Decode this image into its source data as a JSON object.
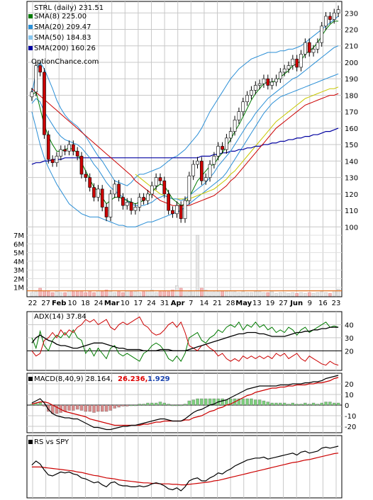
{
  "chart_data": {
    "type": "candlestick",
    "symbol": "STRL",
    "period": "daily",
    "last": "231.51",
    "brand": "OptionChance.com",
    "x_labels": [
      "22",
      "27",
      "Feb",
      "10",
      "18",
      "24",
      "Mar",
      "10",
      "17",
      "24",
      "31",
      "Apr",
      "7",
      "14",
      "21",
      "28",
      "May",
      "13",
      "19",
      "27",
      "Jun",
      "9",
      "16",
      "23"
    ],
    "price_ticks": [
      "230",
      "220",
      "210",
      "200",
      "190",
      "180",
      "170",
      "160",
      "150",
      "140",
      "130",
      "120",
      "110",
      "100"
    ],
    "price_range": [
      95,
      237
    ],
    "volume_ticks": [
      "7M",
      "6M",
      "5M",
      "4M",
      "3M",
      "2M",
      "1M"
    ],
    "volume_range": [
      0,
      7.5
    ],
    "indicators": [
      {
        "name": "SMA(8)",
        "value": "225.00",
        "color": "#007a00"
      },
      {
        "name": "SMA(20)",
        "value": "209.47",
        "color": "#2b8fd6"
      },
      {
        "name": "SMA(50)",
        "value": "184.83",
        "color": "#87c6f0"
      },
      {
        "name": "SMA(200)",
        "value": "160.26",
        "color": "#0000a0"
      }
    ],
    "closes": [
      182,
      198,
      194,
      156,
      141,
      139,
      143,
      147,
      146,
      150,
      146,
      143,
      132,
      130,
      124,
      118,
      123,
      112,
      106,
      120,
      126,
      118,
      113,
      115,
      110,
      112,
      118,
      116,
      120,
      125,
      130,
      128,
      120,
      110,
      108,
      113,
      105,
      116,
      131,
      138,
      140,
      128,
      130,
      138,
      143,
      149,
      147,
      154,
      158,
      165,
      170,
      176,
      180,
      183,
      186,
      187,
      190,
      186,
      188,
      190,
      194,
      196,
      198,
      202,
      197,
      205,
      212,
      206,
      208,
      212,
      222,
      228,
      226,
      230,
      232
    ],
    "sma8": [
      180,
      182,
      172,
      162,
      155,
      150,
      146,
      146,
      147,
      148,
      147,
      145,
      139,
      134,
      129,
      124,
      122,
      118,
      114,
      116,
      118,
      118,
      117,
      116,
      115,
      114,
      115,
      116,
      118,
      121,
      124,
      126,
      125,
      121,
      117,
      115,
      113,
      114,
      118,
      123,
      128,
      131,
      134,
      137,
      138,
      142,
      145,
      149,
      153,
      158,
      162,
      167,
      172,
      177,
      181,
      184,
      187,
      188,
      188,
      189,
      191,
      193,
      195,
      198,
      199,
      201,
      205,
      207,
      209,
      212,
      216,
      220,
      223,
      225,
      225
    ],
    "sma20": [
      175,
      178,
      176,
      170,
      166,
      162,
      158,
      155,
      153,
      152,
      151,
      150,
      148,
      145,
      142,
      138,
      135,
      131,
      127,
      124,
      122,
      120,
      118,
      116,
      114,
      113,
      113,
      113,
      114,
      115,
      117,
      118,
      119,
      118,
      117,
      117,
      116,
      117,
      119,
      121,
      123,
      125,
      127,
      130,
      133,
      137,
      140,
      143,
      146,
      150,
      154,
      158,
      162,
      165,
      169,
      172,
      175,
      178,
      180,
      182,
      184,
      186,
      188,
      190,
      191,
      193,
      195,
      197,
      199,
      201,
      203,
      205,
      207,
      209,
      210
    ],
    "sma50": [
      null,
      null,
      null,
      null,
      null,
      null,
      null,
      null,
      null,
      null,
      null,
      null,
      null,
      null,
      null,
      null,
      null,
      null,
      null,
      null,
      null,
      null,
      null,
      null,
      null,
      132,
      130,
      128,
      126,
      124,
      122,
      120,
      119,
      118,
      117,
      117,
      117,
      117,
      117,
      118,
      119,
      120,
      121,
      122,
      123,
      125,
      127,
      129,
      132,
      134,
      137,
      140,
      143,
      146,
      149,
      152,
      155,
      158,
      161,
      164,
      166,
      168,
      170,
      172,
      174,
      176,
      178,
      179,
      180,
      181,
      182,
      183,
      184,
      184,
      185
    ],
    "sma200": [
      138,
      139,
      139,
      140,
      140,
      141,
      141,
      141,
      142,
      142,
      142,
      142,
      142,
      142,
      142,
      142,
      142,
      142,
      142,
      142,
      142,
      142,
      142,
      142,
      142,
      142,
      142,
      142,
      142,
      142,
      142,
      142,
      142,
      142,
      142,
      142,
      142,
      142,
      142,
      142,
      142,
      143,
      143,
      143,
      144,
      144,
      145,
      145,
      146,
      146,
      147,
      147,
      148,
      148,
      149,
      149,
      150,
      150,
      151,
      151,
      152,
      152,
      153,
      153,
      154,
      154,
      155,
      155,
      156,
      156,
      157,
      158,
      158,
      159,
      160
    ],
    "upper_band": [
      180,
      195,
      200,
      196,
      190,
      184,
      177,
      172,
      168,
      165,
      163,
      161,
      158,
      155,
      151,
      147,
      143,
      140,
      136,
      132,
      128,
      127,
      126,
      125,
      127,
      130,
      132,
      132,
      133,
      134,
      135,
      136,
      138,
      140,
      142,
      143,
      145,
      147,
      150,
      153,
      156,
      160,
      165,
      170,
      174,
      178,
      182,
      186,
      190,
      193,
      196,
      198,
      200,
      202,
      203,
      204,
      205,
      206,
      206,
      206,
      207,
      207,
      208,
      208,
      209,
      210,
      212,
      214,
      216,
      218,
      220,
      222,
      224,
      226,
      228
    ],
    "lower_band": [
      170,
      160,
      150,
      142,
      136,
      131,
      126,
      122,
      118,
      114,
      112,
      110,
      108,
      107,
      106,
      106,
      106,
      105,
      104,
      103,
      102,
      101,
      101,
      100,
      100,
      100,
      101,
      102,
      103,
      103,
      104,
      105,
      106,
      107,
      108,
      109,
      110,
      112,
      114,
      116,
      118,
      120,
      122,
      124,
      126,
      128,
      130,
      133,
      137,
      141,
      145,
      149,
      153,
      157,
      161,
      165,
      169,
      172,
      175,
      177,
      179,
      180,
      181,
      182,
      183,
      184,
      185,
      186,
      187,
      188,
      189,
      190,
      191,
      192,
      193
    ],
    "volume": [
      0.4,
      0.5,
      0.9,
      0.6,
      0.5,
      0.4,
      0.5,
      0.4,
      0.4,
      0.6,
      0.5,
      0.6,
      0.5,
      0.4,
      0.5,
      0.4,
      0.6,
      0.5,
      0.7,
      0.5,
      0.4,
      0.5,
      0.4,
      0.6,
      0.5,
      0.5,
      0.4,
      0.5,
      0.6,
      0.7,
      0.4,
      0.5,
      0.6,
      0.5,
      0.7,
      1.2,
      0.9,
      0.6,
      0.5,
      0.6,
      7.0,
      0.9,
      0.7,
      0.6,
      0.5,
      0.5,
      0.6,
      0.5,
      0.6,
      0.5,
      0.4,
      0.5,
      0.4,
      0.4,
      0.5,
      0.5,
      0.4,
      0.4,
      0.5,
      0.3,
      0.4,
      0.4,
      0.3,
      0.4,
      0.3,
      0.4,
      0.3,
      0.4,
      0.3,
      0.4,
      0.5,
      0.4,
      0.3,
      0.6,
      0.8
    ],
    "volume_avg_level": 0.6,
    "adx": {
      "label": "ADX(14) 37.84",
      "ticks": [
        "40",
        "30",
        "20"
      ],
      "range": [
        5,
        50
      ],
      "adx": [
        26,
        30,
        32,
        30,
        28,
        27,
        25,
        24,
        24,
        23,
        22,
        22,
        23,
        24,
        25,
        26,
        26,
        26,
        25,
        24,
        23,
        22,
        22,
        21,
        21,
        21,
        21,
        20,
        20,
        20,
        20,
        21,
        21,
        21,
        20,
        20,
        20,
        20,
        21,
        22,
        23,
        24,
        25,
        26,
        27,
        28,
        29,
        30,
        31,
        32,
        33,
        33,
        34,
        34,
        34,
        33,
        33,
        32,
        31,
        31,
        31,
        31,
        32,
        33,
        34,
        34,
        35,
        35,
        36,
        36,
        37,
        37,
        38,
        38,
        38
      ],
      "plus_di": [
        30,
        22,
        35,
        24,
        20,
        28,
        32,
        30,
        34,
        30,
        36,
        30,
        28,
        18,
        22,
        16,
        22,
        18,
        14,
        22,
        24,
        18,
        16,
        18,
        16,
        14,
        12,
        18,
        20,
        24,
        26,
        24,
        20,
        14,
        12,
        16,
        12,
        18,
        30,
        32,
        34,
        28,
        26,
        30,
        32,
        36,
        34,
        38,
        40,
        38,
        42,
        36,
        40,
        38,
        42,
        38,
        40,
        36,
        38,
        34,
        36,
        34,
        38,
        36,
        32,
        36,
        38,
        34,
        36,
        38,
        40,
        42,
        38,
        39,
        38
      ],
      "minus_di": [
        20,
        16,
        18,
        28,
        30,
        34,
        30,
        36,
        32,
        36,
        34,
        38,
        40,
        44,
        42,
        44,
        40,
        42,
        44,
        38,
        36,
        40,
        42,
        40,
        42,
        44,
        46,
        40,
        38,
        34,
        32,
        33,
        36,
        40,
        42,
        38,
        42,
        34,
        24,
        22,
        20,
        24,
        25,
        22,
        20,
        16,
        18,
        14,
        12,
        14,
        12,
        16,
        14,
        16,
        14,
        16,
        14,
        16,
        14,
        18,
        16,
        18,
        14,
        16,
        18,
        14,
        12,
        16,
        14,
        12,
        10,
        9,
        12,
        10,
        9
      ],
      "cmp_level": 20
    },
    "macd": {
      "label": "MACD(8,40,9) 28.164,",
      "signal_value": "26.236,",
      "hist_value": "1.929",
      "ticks": [
        "20",
        "10",
        "0",
        "-10",
        "-20"
      ],
      "range": [
        -26,
        30
      ],
      "macd": [
        2,
        4,
        6,
        2,
        -4,
        -8,
        -10,
        -11,
        -12,
        -12,
        -13,
        -13,
        -15,
        -17,
        -19,
        -21,
        -21,
        -22,
        -23,
        -23,
        -22,
        -21,
        -20,
        -20,
        -19,
        -19,
        -18,
        -17,
        -16,
        -15,
        -14,
        -13,
        -13,
        -14,
        -15,
        -15,
        -15,
        -13,
        -10,
        -7,
        -5,
        -4,
        -2,
        0,
        1,
        3,
        4,
        5,
        7,
        9,
        11,
        13,
        15,
        16,
        17,
        18,
        18,
        18,
        18,
        18,
        19,
        19,
        19,
        20,
        20,
        20,
        21,
        21,
        22,
        22,
        23,
        25,
        26,
        27,
        28
      ],
      "signal": [
        1,
        2,
        3,
        3,
        2,
        0,
        -2,
        -4,
        -6,
        -7,
        -8,
        -9,
        -10,
        -11,
        -13,
        -14,
        -15,
        -16,
        -17,
        -18,
        -19,
        -19,
        -19,
        -19,
        -19,
        -19,
        -19,
        -18,
        -18,
        -17,
        -16,
        -16,
        -15,
        -15,
        -15,
        -15,
        -15,
        -14,
        -14,
        -12,
        -11,
        -10,
        -8,
        -6,
        -5,
        -3,
        -2,
        0,
        1,
        3,
        5,
        7,
        9,
        10,
        12,
        13,
        14,
        15,
        16,
        16,
        17,
        17,
        18,
        18,
        19,
        19,
        19,
        20,
        20,
        21,
        21,
        22,
        23,
        25,
        26
      ],
      "hist": [
        1,
        2,
        3,
        -1,
        -6,
        -8,
        -8,
        -7,
        -6,
        -5,
        -5,
        -4,
        -5,
        -6,
        -6,
        -7,
        -6,
        -6,
        -6,
        -5,
        -3,
        -2,
        -1,
        -1,
        0,
        0,
        1,
        1,
        2,
        2,
        2,
        3,
        2,
        1,
        0,
        0,
        0,
        1,
        4,
        5,
        6,
        6,
        6,
        6,
        6,
        6,
        6,
        5,
        6,
        6,
        6,
        6,
        6,
        6,
        5,
        5,
        4,
        3,
        2,
        2,
        2,
        2,
        1,
        2,
        1,
        1,
        2,
        1,
        2,
        1,
        2,
        3,
        3,
        2,
        2
      ]
    },
    "rs": {
      "label": "RS vs SPY",
      "range": [
        0,
        100
      ],
      "rs": [
        62,
        70,
        64,
        52,
        42,
        40,
        44,
        48,
        46,
        48,
        44,
        42,
        36,
        34,
        30,
        26,
        28,
        22,
        18,
        26,
        28,
        22,
        20,
        20,
        18,
        18,
        20,
        18,
        20,
        24,
        26,
        24,
        20,
        14,
        12,
        16,
        10,
        18,
        30,
        34,
        36,
        30,
        30,
        36,
        40,
        46,
        44,
        50,
        54,
        60,
        64,
        68,
        72,
        74,
        76,
        76,
        78,
        74,
        76,
        78,
        80,
        82,
        84,
        86,
        82,
        88,
        90,
        86,
        88,
        90,
        96,
        98,
        96,
        98,
        100
      ],
      "rs_ma": [
        58,
        58,
        58,
        57,
        56,
        55,
        54,
        53,
        52,
        51,
        50,
        48,
        47,
        45,
        43,
        41,
        40,
        38,
        36,
        35,
        34,
        32,
        31,
        30,
        29,
        28,
        27,
        26,
        26,
        25,
        25,
        24,
        24,
        24,
        23,
        23,
        22,
        22,
        23,
        24,
        25,
        26,
        27,
        28,
        30,
        31,
        33,
        35,
        37,
        39,
        41,
        43,
        45,
        47,
        49,
        51,
        53,
        55,
        57,
        59,
        61,
        63,
        65,
        67,
        68,
        70,
        72,
        73,
        75,
        77,
        79,
        81,
        83,
        85,
        86
      ]
    }
  }
}
